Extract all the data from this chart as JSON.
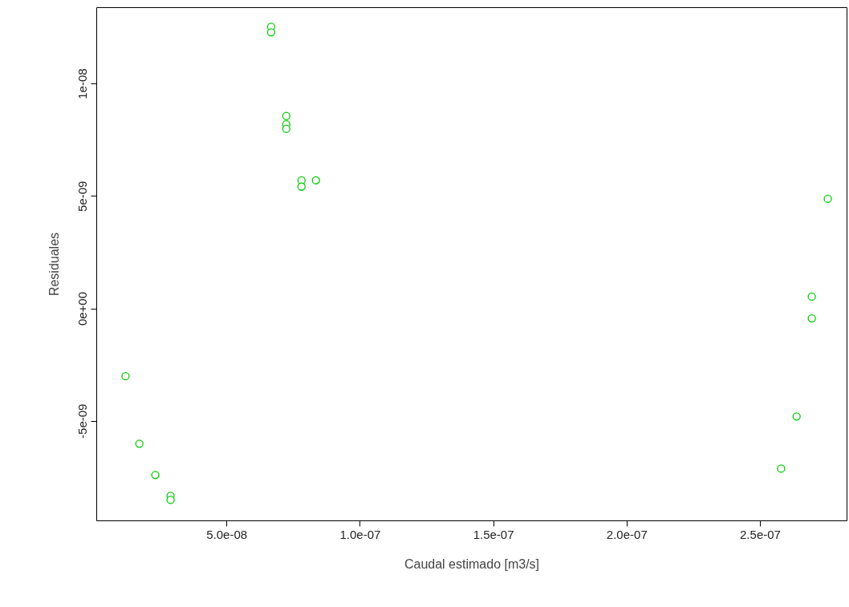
{
  "chart_data": {
    "type": "scatter",
    "xlabel": "Caudal estimado [m3/s]",
    "ylabel": "Residuales",
    "marker": "circle",
    "grid": false,
    "xlim": [
      1.2e-09,
      2.825e-07
    ],
    "ylim": [
      -9.43e-09,
      1.339e-08
    ],
    "xticks": [
      {
        "value": 5e-08,
        "label": "5.0e-08"
      },
      {
        "value": 1e-07,
        "label": "1.0e-07"
      },
      {
        "value": 1.5e-07,
        "label": "1.5e-07"
      },
      {
        "value": 2e-07,
        "label": "2.0e-07"
      },
      {
        "value": 2.5e-07,
        "label": "2.5e-07"
      }
    ],
    "yticks": [
      {
        "value": -5e-09,
        "label": "-5e-09"
      },
      {
        "value": 0,
        "label": "0e+00"
      },
      {
        "value": 5e-09,
        "label": "5e-09"
      },
      {
        "value": 1e-08,
        "label": "1e-08"
      }
    ],
    "x": [
      1.2e-08,
      1.72e-08,
      2.32e-08,
      2.89e-08,
      2.89e-08,
      6.66e-08,
      6.66e-08,
      7.23e-08,
      7.23e-08,
      7.23e-08,
      7.8e-08,
      7.8e-08,
      8.34e-08,
      2.753e-07,
      2.693e-07,
      2.693e-07,
      2.636e-07,
      2.578e-07
    ],
    "series": [
      {
        "color": "#00cd00",
        "values": [
          -3e-09,
          -6e-09,
          -7.39e-09,
          -8.32e-09,
          -8.5e-09,
          1.254e-08,
          1.229e-08,
          8.57e-09,
          8.2e-09,
          8e-09,
          5.71e-09,
          5.43e-09,
          5.71e-09,
          4.89e-09,
          5.4e-10,
          -4.3e-10,
          -4.79e-09,
          -7.11e-09
        ]
      }
    ]
  }
}
